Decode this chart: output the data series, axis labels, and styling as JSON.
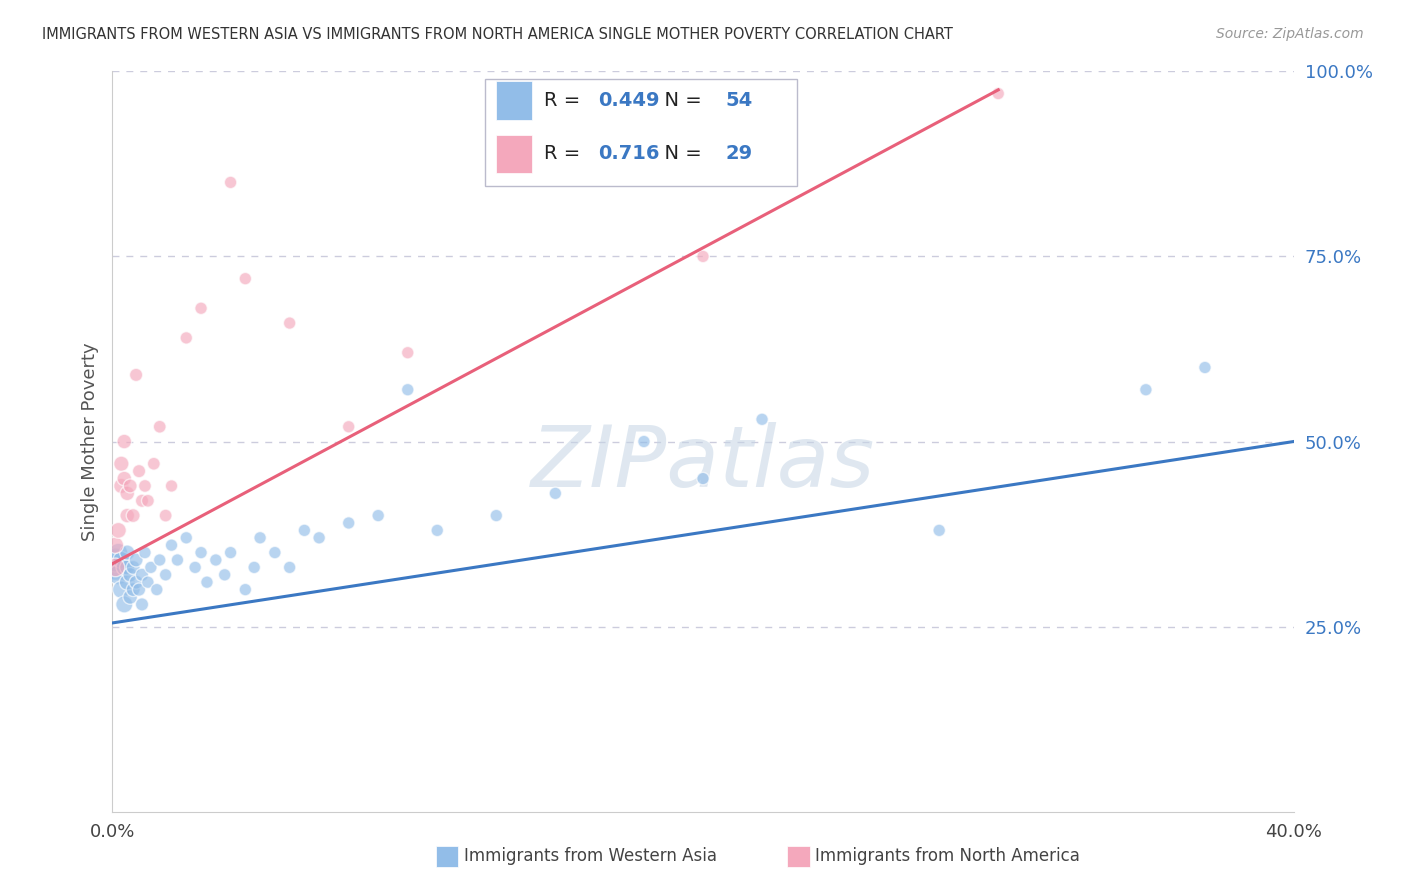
{
  "title": "IMMIGRANTS FROM WESTERN ASIA VS IMMIGRANTS FROM NORTH AMERICA SINGLE MOTHER POVERTY CORRELATION CHART",
  "source": "Source: ZipAtlas.com",
  "xlabel_blue": "Immigrants from Western Asia",
  "xlabel_pink": "Immigrants from North America",
  "ylabel": "Single Mother Poverty",
  "watermark": "ZIPatlas",
  "blue_R": 0.449,
  "blue_N": 54,
  "pink_R": 0.716,
  "pink_N": 29,
  "xlim": [
    0.0,
    0.4
  ],
  "ylim": [
    0.0,
    1.0
  ],
  "yticks": [
    0.25,
    0.5,
    0.75,
    1.0
  ],
  "ytick_labels": [
    "25.0%",
    "50.0%",
    "75.0%",
    "100.0%"
  ],
  "xticks": [
    0.0,
    0.1,
    0.2,
    0.3,
    0.4
  ],
  "xtick_labels": [
    "0.0%",
    "",
    "",
    "",
    "40.0%"
  ],
  "blue_color": "#92BDE8",
  "pink_color": "#F4A8BC",
  "blue_line_color": "#3B78C3",
  "pink_line_color": "#E8607A",
  "background_color": "#FFFFFF",
  "grid_color": "#CCCCDD",
  "blue_x": [
    0.001,
    0.001,
    0.002,
    0.002,
    0.003,
    0.003,
    0.004,
    0.004,
    0.005,
    0.005,
    0.005,
    0.006,
    0.006,
    0.007,
    0.007,
    0.008,
    0.008,
    0.009,
    0.01,
    0.01,
    0.011,
    0.012,
    0.013,
    0.015,
    0.016,
    0.018,
    0.02,
    0.022,
    0.025,
    0.028,
    0.03,
    0.032,
    0.035,
    0.038,
    0.04,
    0.045,
    0.048,
    0.05,
    0.055,
    0.06,
    0.065,
    0.07,
    0.08,
    0.09,
    0.1,
    0.11,
    0.13,
    0.15,
    0.18,
    0.2,
    0.22,
    0.28,
    0.35,
    0.37
  ],
  "blue_y": [
    0.33,
    0.34,
    0.32,
    0.35,
    0.3,
    0.34,
    0.28,
    0.33,
    0.31,
    0.33,
    0.35,
    0.29,
    0.32,
    0.3,
    0.33,
    0.31,
    0.34,
    0.3,
    0.28,
    0.32,
    0.35,
    0.31,
    0.33,
    0.3,
    0.34,
    0.32,
    0.36,
    0.34,
    0.37,
    0.33,
    0.35,
    0.31,
    0.34,
    0.32,
    0.35,
    0.3,
    0.33,
    0.37,
    0.35,
    0.33,
    0.38,
    0.37,
    0.39,
    0.4,
    0.57,
    0.38,
    0.4,
    0.43,
    0.5,
    0.45,
    0.53,
    0.38,
    0.57,
    0.6
  ],
  "blue_sizes": [
    350,
    300,
    200,
    180,
    160,
    150,
    150,
    140,
    130,
    120,
    120,
    110,
    110,
    100,
    100,
    100,
    100,
    90,
    90,
    90,
    80,
    80,
    80,
    80,
    80,
    80,
    80,
    80,
    80,
    80,
    80,
    80,
    80,
    80,
    80,
    80,
    80,
    80,
    80,
    80,
    80,
    80,
    80,
    80,
    80,
    80,
    80,
    80,
    80,
    80,
    80,
    80,
    80,
    80
  ],
  "pink_x": [
    0.001,
    0.001,
    0.002,
    0.003,
    0.003,
    0.004,
    0.004,
    0.005,
    0.005,
    0.006,
    0.007,
    0.008,
    0.009,
    0.01,
    0.011,
    0.012,
    0.014,
    0.016,
    0.018,
    0.02,
    0.025,
    0.03,
    0.04,
    0.045,
    0.06,
    0.08,
    0.1,
    0.2,
    0.3
  ],
  "pink_y": [
    0.33,
    0.36,
    0.38,
    0.47,
    0.44,
    0.45,
    0.5,
    0.4,
    0.43,
    0.44,
    0.4,
    0.59,
    0.46,
    0.42,
    0.44,
    0.42,
    0.47,
    0.52,
    0.4,
    0.44,
    0.64,
    0.68,
    0.85,
    0.72,
    0.66,
    0.52,
    0.62,
    0.75,
    0.97
  ],
  "pink_sizes": [
    180,
    140,
    130,
    120,
    120,
    110,
    110,
    110,
    110,
    100,
    100,
    90,
    90,
    90,
    85,
    85,
    85,
    85,
    85,
    80,
    80,
    80,
    80,
    80,
    80,
    80,
    80,
    80,
    80
  ],
  "blue_trend_x0": 0.0,
  "blue_trend_x1": 0.4,
  "blue_trend_y0": 0.255,
  "blue_trend_y1": 0.5,
  "pink_trend_x0": 0.0,
  "pink_trend_x1": 0.3,
  "pink_trend_y0": 0.335,
  "pink_trend_y1": 0.975
}
